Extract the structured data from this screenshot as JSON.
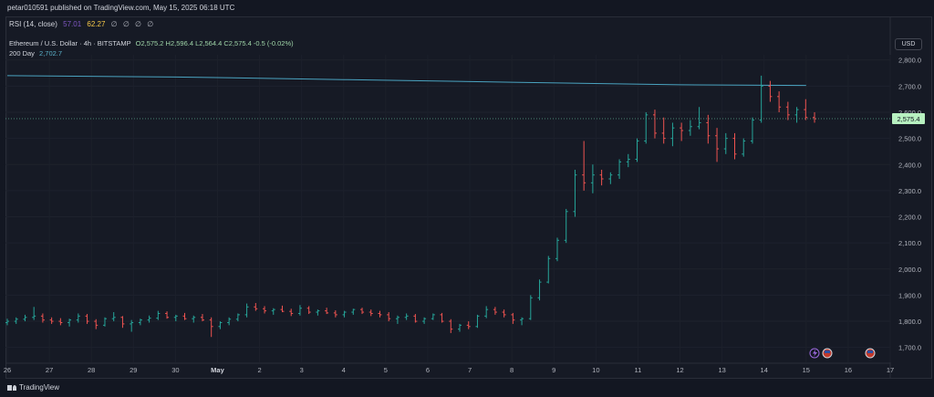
{
  "header": {
    "published": "petar010591 published on TradingView.com, May 15, 2025 06:18 UTC"
  },
  "rsi": {
    "label": "RSI (14, close)",
    "value1": "57.01",
    "value2": "62.27",
    "dots": "∅ ∅ ∅ ∅"
  },
  "legend": {
    "symbol": "Ethereum / U.S. Dollar · 4h · BITSTAMP",
    "ohlc": "O2,575.2 H2,596.4 L2,564.4 C2,575.4 -0.5 (-0.02%)",
    "ma_label": "200 Day",
    "ma_value": "2,702.7"
  },
  "currency_button": "USD",
  "price_label": "2,575.4",
  "footer": {
    "brand": "TradingView"
  },
  "colors": {
    "up": "#26a69a",
    "down": "#ef5350",
    "ma": "#4aa3c0",
    "bg": "#161a25",
    "price_tag": "#b7f0c0"
  },
  "chart_data": {
    "type": "candlestick",
    "ylim": [
      1650,
      2820
    ],
    "yticks": [
      1700,
      1800,
      1900,
      2000,
      2100,
      2200,
      2300,
      2400,
      2500,
      2600,
      2700,
      2800
    ],
    "ytick_labels": [
      "1,700.0",
      "1,800.0",
      "1,900.0",
      "2,000.0",
      "2,100.0",
      "2,200.0",
      "2,300.0",
      "2,400.0",
      "2,500.0",
      "2,600.0",
      "2,700.0",
      "2,800.0"
    ],
    "xlim": [
      26,
      17
    ],
    "xticks": [
      {
        "label": "26",
        "day": 26
      },
      {
        "label": "27",
        "day": 27
      },
      {
        "label": "28",
        "day": 28
      },
      {
        "label": "29",
        "day": 29
      },
      {
        "label": "30",
        "day": 30
      },
      {
        "label": "May",
        "day": 31
      },
      {
        "label": "2",
        "day": 32
      },
      {
        "label": "3",
        "day": 33
      },
      {
        "label": "4",
        "day": 34
      },
      {
        "label": "5",
        "day": 35
      },
      {
        "label": "6",
        "day": 36
      },
      {
        "label": "7",
        "day": 37
      },
      {
        "label": "8",
        "day": 38
      },
      {
        "label": "9",
        "day": 39
      },
      {
        "label": "10",
        "day": 40
      },
      {
        "label": "11",
        "day": 41
      },
      {
        "label": "12",
        "day": 42
      },
      {
        "label": "13",
        "day": 43
      },
      {
        "label": "14",
        "day": 44
      },
      {
        "label": "15",
        "day": 45
      },
      {
        "label": "16",
        "day": 46
      },
      {
        "label": "17",
        "day": 47
      }
    ],
    "ma_200": [
      [
        26,
        2740
      ],
      [
        30,
        2735
      ],
      [
        34,
        2725
      ],
      [
        38,
        2715
      ],
      [
        42,
        2705
      ],
      [
        45,
        2702.7
      ]
    ],
    "last_price": 2575.4,
    "candles": [
      [
        1795,
        1810,
        1785,
        1800
      ],
      [
        1800,
        1815,
        1790,
        1808
      ],
      [
        1808,
        1825,
        1800,
        1815
      ],
      [
        1815,
        1855,
        1805,
        1820
      ],
      [
        1820,
        1830,
        1795,
        1805
      ],
      [
        1805,
        1815,
        1790,
        1800
      ],
      [
        1800,
        1812,
        1785,
        1795
      ],
      [
        1795,
        1810,
        1780,
        1805
      ],
      [
        1805,
        1830,
        1795,
        1820
      ],
      [
        1820,
        1828,
        1790,
        1800
      ],
      [
        1800,
        1808,
        1770,
        1785
      ],
      [
        1785,
        1815,
        1780,
        1810
      ],
      [
        1810,
        1835,
        1800,
        1815
      ],
      [
        1815,
        1820,
        1775,
        1790
      ],
      [
        1790,
        1805,
        1760,
        1795
      ],
      [
        1795,
        1810,
        1785,
        1805
      ],
      [
        1805,
        1822,
        1795,
        1812
      ],
      [
        1812,
        1840,
        1805,
        1830
      ],
      [
        1830,
        1838,
        1810,
        1815
      ],
      [
        1815,
        1825,
        1800,
        1820
      ],
      [
        1820,
        1832,
        1805,
        1810
      ],
      [
        1810,
        1822,
        1795,
        1815
      ],
      [
        1815,
        1828,
        1800,
        1805
      ],
      [
        1805,
        1815,
        1740,
        1780
      ],
      [
        1780,
        1800,
        1770,
        1795
      ],
      [
        1795,
        1815,
        1785,
        1808
      ],
      [
        1808,
        1830,
        1800,
        1825
      ],
      [
        1825,
        1868,
        1815,
        1855
      ],
      [
        1855,
        1870,
        1840,
        1848
      ],
      [
        1848,
        1858,
        1830,
        1840
      ],
      [
        1840,
        1850,
        1825,
        1845
      ],
      [
        1845,
        1860,
        1835,
        1838
      ],
      [
        1838,
        1848,
        1820,
        1830
      ],
      [
        1830,
        1862,
        1822,
        1850
      ],
      [
        1850,
        1858,
        1828,
        1835
      ],
      [
        1835,
        1845,
        1822,
        1840
      ],
      [
        1840,
        1852,
        1828,
        1832
      ],
      [
        1832,
        1842,
        1815,
        1825
      ],
      [
        1825,
        1840,
        1815,
        1835
      ],
      [
        1835,
        1848,
        1825,
        1845
      ],
      [
        1845,
        1852,
        1828,
        1835
      ],
      [
        1835,
        1845,
        1820,
        1830
      ],
      [
        1830,
        1840,
        1815,
        1825
      ],
      [
        1825,
        1835,
        1800,
        1810
      ],
      [
        1810,
        1822,
        1790,
        1815
      ],
      [
        1815,
        1830,
        1805,
        1820
      ],
      [
        1820,
        1828,
        1795,
        1800
      ],
      [
        1800,
        1815,
        1790,
        1810
      ],
      [
        1810,
        1830,
        1805,
        1825
      ],
      [
        1825,
        1832,
        1795,
        1800
      ],
      [
        1800,
        1808,
        1755,
        1770
      ],
      [
        1770,
        1790,
        1760,
        1785
      ],
      [
        1785,
        1800,
        1770,
        1780
      ],
      [
        1780,
        1825,
        1775,
        1820
      ],
      [
        1820,
        1858,
        1812,
        1845
      ],
      [
        1845,
        1855,
        1825,
        1835
      ],
      [
        1835,
        1845,
        1815,
        1825
      ],
      [
        1825,
        1832,
        1790,
        1805
      ],
      [
        1805,
        1815,
        1785,
        1810
      ],
      [
        1810,
        1900,
        1805,
        1890
      ],
      [
        1890,
        1960,
        1880,
        1950
      ],
      [
        1950,
        2050,
        1945,
        2040
      ],
      [
        2040,
        2120,
        2030,
        2110
      ],
      [
        2110,
        2230,
        2100,
        2220
      ],
      [
        2220,
        2380,
        2200,
        2360
      ],
      [
        2360,
        2490,
        2300,
        2330
      ],
      [
        2330,
        2400,
        2290,
        2360
      ],
      [
        2360,
        2380,
        2320,
        2345
      ],
      [
        2345,
        2370,
        2325,
        2360
      ],
      [
        2360,
        2420,
        2345,
        2410
      ],
      [
        2410,
        2440,
        2390,
        2420
      ],
      [
        2420,
        2500,
        2410,
        2490
      ],
      [
        2490,
        2600,
        2480,
        2590
      ],
      [
        2590,
        2610,
        2500,
        2520
      ],
      [
        2520,
        2580,
        2480,
        2500
      ],
      [
        2500,
        2560,
        2470,
        2540
      ],
      [
        2540,
        2560,
        2490,
        2530
      ],
      [
        2530,
        2570,
        2510,
        2545
      ],
      [
        2545,
        2620,
        2535,
        2560
      ],
      [
        2560,
        2590,
        2480,
        2510
      ],
      [
        2510,
        2540,
        2410,
        2460
      ],
      [
        2460,
        2520,
        2440,
        2500
      ],
      [
        2500,
        2520,
        2420,
        2440
      ],
      [
        2440,
        2500,
        2430,
        2490
      ],
      [
        2490,
        2580,
        2480,
        2570
      ],
      [
        2570,
        2740,
        2560,
        2700
      ],
      [
        2700,
        2720,
        2640,
        2660
      ],
      [
        2660,
        2680,
        2600,
        2620
      ],
      [
        2620,
        2640,
        2570,
        2590
      ],
      [
        2590,
        2620,
        2560,
        2610
      ],
      [
        2610,
        2650,
        2570,
        2580
      ],
      [
        2580,
        2600,
        2560,
        2575
      ]
    ]
  }
}
